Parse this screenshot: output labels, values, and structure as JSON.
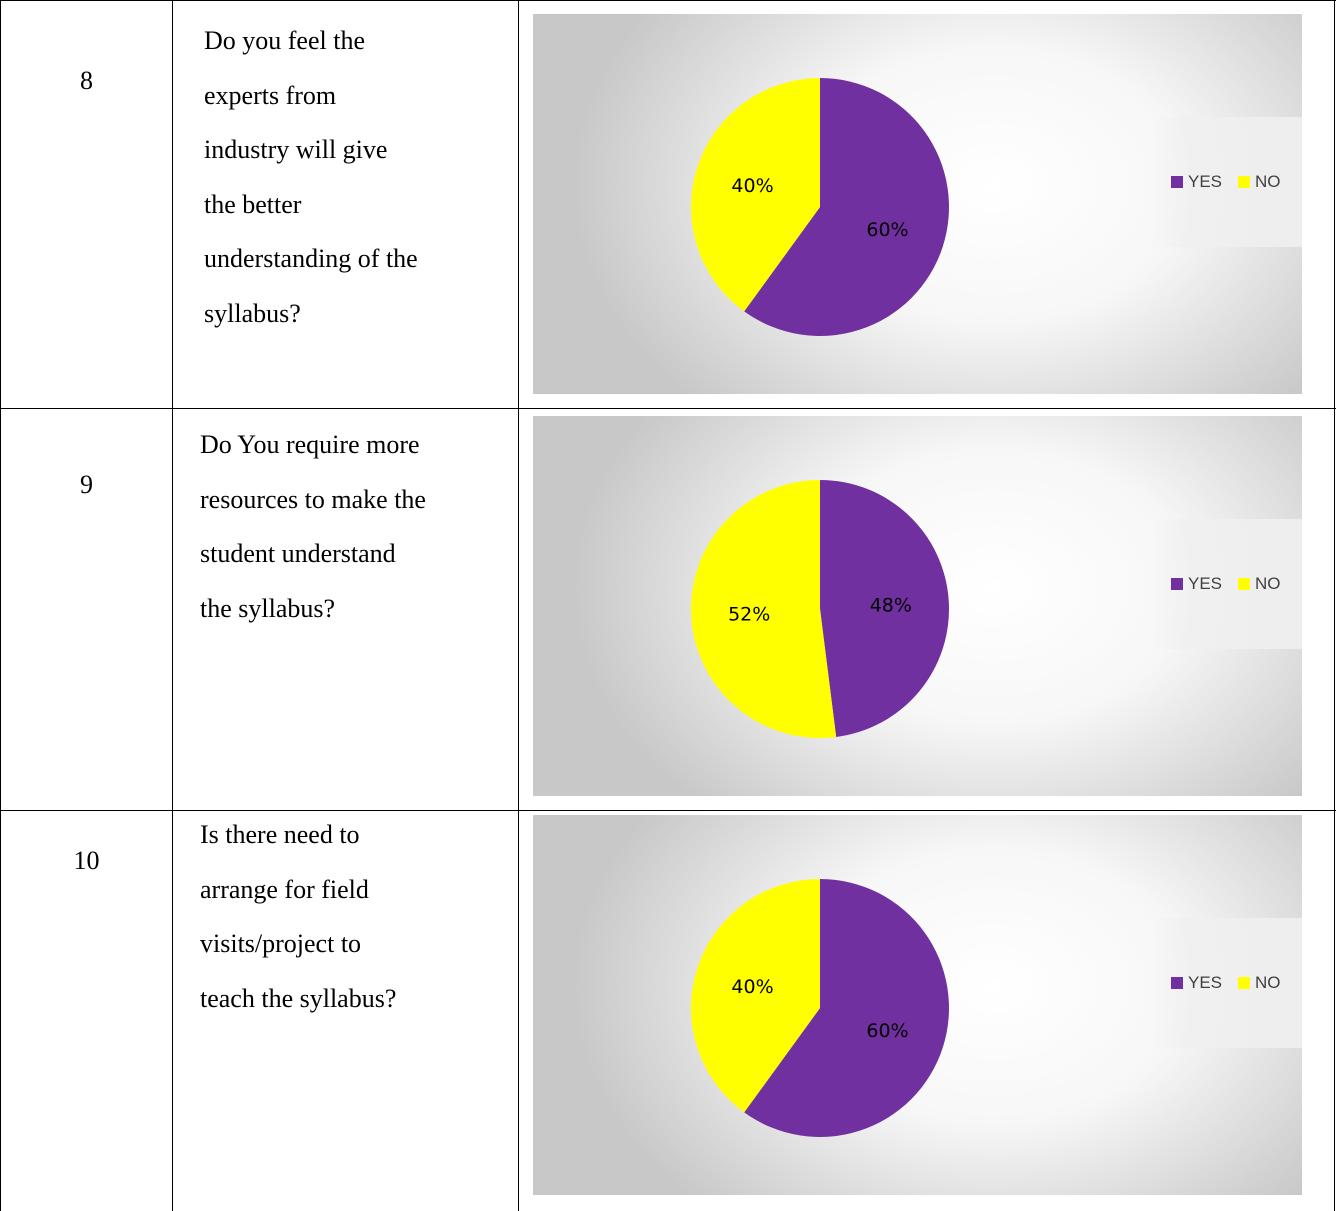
{
  "rows": [
    {
      "number": "8",
      "question_lines": [
        "Do you feel the",
        "experts from",
        "industry will give",
        "the better",
        "understanding of the",
        "syllabus?"
      ]
    },
    {
      "number": "9",
      "question_lines": [
        "Do You require more",
        "resources to make the",
        "student understand",
        "the syllabus?"
      ]
    },
    {
      "number": "10",
      "question_lines": [
        "Is there need to",
        "arrange for field",
        "visits/project to",
        "teach the syllabus?"
      ]
    }
  ],
  "chart_data": [
    {
      "type": "pie",
      "categories": [
        "YES",
        "NO"
      ],
      "values": [
        60,
        40
      ],
      "labels": [
        "60%",
        "40%"
      ],
      "colors": [
        "#7030A0",
        "#FFFF00"
      ],
      "legend": "right"
    },
    {
      "type": "pie",
      "categories": [
        "YES",
        "NO"
      ],
      "values": [
        48,
        52
      ],
      "labels": [
        "48%",
        "52%"
      ],
      "colors": [
        "#7030A0",
        "#FFFF00"
      ],
      "legend": "right"
    },
    {
      "type": "pie",
      "categories": [
        "YES",
        "NO"
      ],
      "values": [
        60,
        40
      ],
      "labels": [
        "60%",
        "40%"
      ],
      "colors": [
        "#7030A0",
        "#FFFF00"
      ],
      "legend": "right"
    }
  ]
}
